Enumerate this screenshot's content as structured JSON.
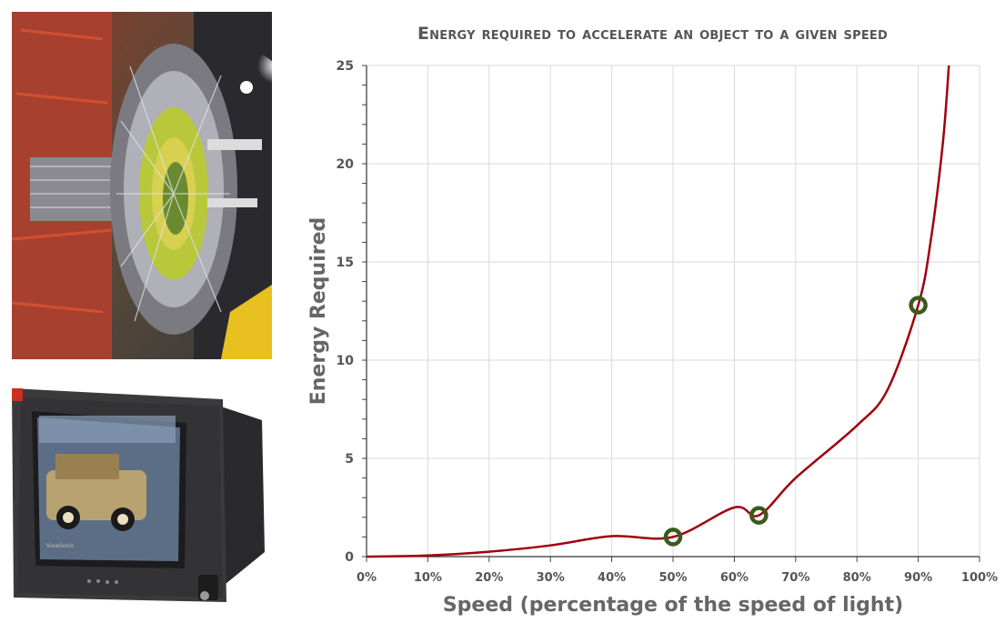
{
  "photos": {
    "detector": "particle-detector-photo",
    "monitor": "crt-monitor-photo",
    "monitor_brand": "ViewSonic"
  },
  "chart_data": {
    "type": "line",
    "title": "Energy required to accelerate an object to a given speed",
    "xlabel": "Speed (percentage of the speed of light)",
    "ylabel": "Energy Required",
    "xlim": [
      0,
      1
    ],
    "ylim": [
      0,
      25
    ],
    "x_ticks": [
      "0%",
      "10%",
      "20%",
      "30%",
      "40%",
      "50%",
      "60%",
      "70%",
      "80%",
      "90%",
      "100%"
    ],
    "y_ticks": [
      "0",
      "5",
      "10",
      "15",
      "20",
      "25"
    ],
    "grid": true,
    "series": [
      {
        "color": "#a0000f",
        "x": [
          0,
          0.1,
          0.2,
          0.3,
          0.4,
          0.5,
          0.6,
          0.64,
          0.7,
          0.8,
          0.85,
          0.9,
          0.92,
          0.94,
          0.95
        ],
        "y": [
          0,
          0.06,
          0.25,
          0.57,
          1.04,
          1.0,
          2.5,
          2.1,
          4.0,
          6.67,
          8.5,
          12.8,
          16.0,
          21.0,
          25.0
        ]
      }
    ],
    "highlighted_points": [
      {
        "x": 0.5,
        "y": 1.0
      },
      {
        "x": 0.64,
        "y": 2.1
      },
      {
        "x": 0.9,
        "y": 12.8
      }
    ],
    "marker_color": "#3a5a1e"
  }
}
